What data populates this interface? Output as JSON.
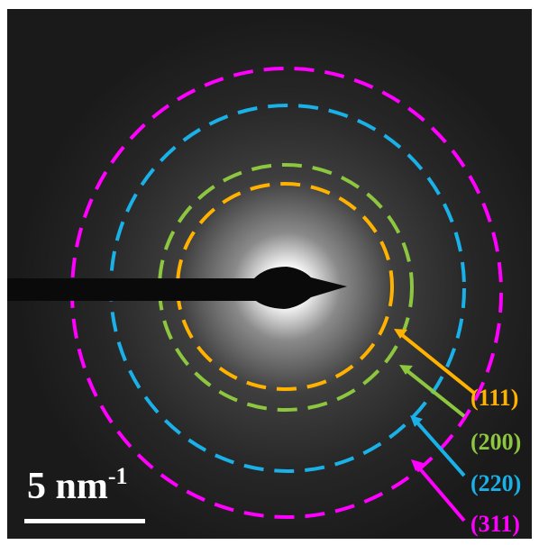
{
  "rings": [
    {
      "label": "(111)"
    },
    {
      "label": "(200)"
    },
    {
      "label": "(220)"
    },
    {
      "label": "(311)"
    }
  ],
  "scale_bar": {
    "text": "5 nm",
    "exponent": "-1"
  }
}
